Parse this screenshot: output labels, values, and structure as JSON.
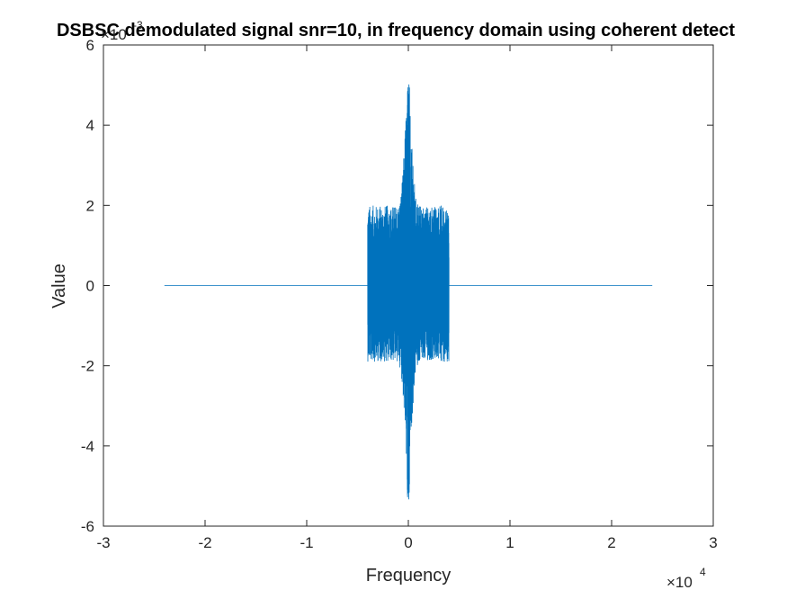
{
  "chart_data": {
    "type": "line",
    "title": "DSBSC demodulated signal snr=10, in frequency domain using coherent detect",
    "xlabel": "Frequency",
    "ylabel": "Value",
    "xlim": [
      -30000,
      30000
    ],
    "ylim": [
      -0.006,
      0.006
    ],
    "x_ticks": [
      -3,
      -2,
      -1,
      0,
      1,
      2,
      3
    ],
    "y_ticks": [
      -6,
      -4,
      -2,
      0,
      2,
      4,
      6
    ],
    "x_exponent_label": "×10",
    "x_exponent_power": "4",
    "y_exponent_label": "×10",
    "y_exponent_power": "-3",
    "grid": false,
    "legend": "none",
    "line_color": "#0072BD",
    "series": [
      {
        "x_range": [
          -24000,
          24000
        ],
        "band_x_range": [
          -4000,
          4000
        ],
        "band_typical_amplitude_pos": 0.002,
        "band_typical_amplitude_neg": -0.0019,
        "center_peak_max": 0.0051,
        "center_peak_min": -0.0054,
        "outside_band_value": 0
      }
    ]
  }
}
